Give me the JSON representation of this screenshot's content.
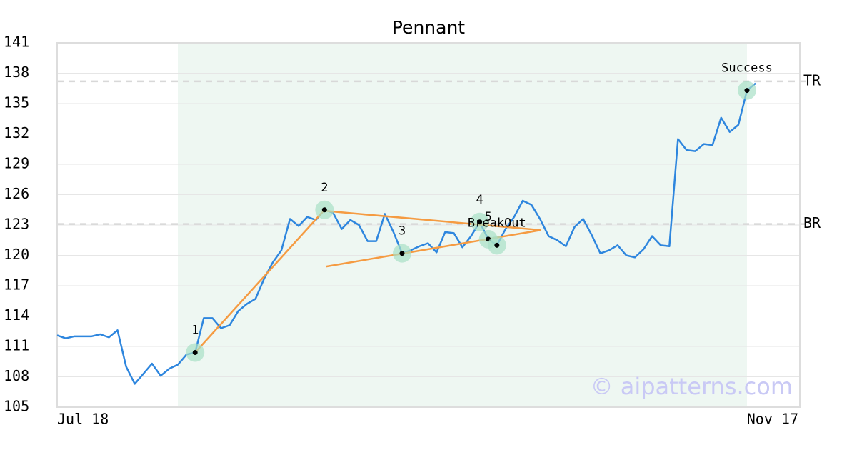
{
  "chart_data": {
    "type": "line",
    "title": "Pennant",
    "categories": [
      "Jul 18",
      null,
      null,
      null,
      null,
      null,
      null,
      null,
      null,
      null,
      null,
      null,
      null,
      null,
      null,
      null,
      null,
      null,
      null,
      null,
      null,
      null,
      null,
      null,
      null,
      null,
      null,
      null,
      null,
      null,
      null,
      null,
      null,
      null,
      null,
      null,
      null,
      null,
      null,
      null,
      null,
      null,
      null,
      null,
      null,
      null,
      null,
      null,
      null,
      null,
      null,
      null,
      null,
      null,
      null,
      null,
      null,
      null,
      null,
      null,
      null,
      null,
      null,
      null,
      null,
      null,
      null,
      null,
      null,
      null,
      null,
      null,
      null,
      null,
      null,
      null,
      null,
      null,
      null,
      null,
      null,
      "Nov 17"
    ],
    "series": [
      {
        "color": "#2e86de",
        "values": [
          112.1,
          111.8,
          112.0,
          112.0,
          112.0,
          112.2,
          111.9,
          112.6,
          109.0,
          107.3,
          108.3,
          109.3,
          108.1,
          108.8,
          109.2,
          110.2,
          110.4,
          113.8,
          113.8,
          112.8,
          113.1,
          114.5,
          115.2,
          115.7,
          117.7,
          119.3,
          120.5,
          123.6,
          122.9,
          123.8,
          123.5,
          124.5,
          124.2,
          122.6,
          123.5,
          123.0,
          121.4,
          121.4,
          124.1,
          122.3,
          120.2,
          120.5,
          120.9,
          121.2,
          120.3,
          122.3,
          122.2,
          120.8,
          121.9,
          123.3,
          121.6,
          121.0,
          122.6,
          123.8,
          125.4,
          125.0,
          123.6,
          121.9,
          121.5,
          120.9,
          122.8,
          123.6,
          122.0,
          120.2,
          120.5,
          121.0,
          120.0,
          119.8,
          120.6,
          121.9,
          121.0,
          120.9,
          131.5,
          130.4,
          130.3,
          131.0,
          130.9,
          133.6,
          132.2,
          132.9,
          136.3,
          137.0
        ]
      }
    ],
    "ylim": [
      105,
      141
    ],
    "yticks": [
      105,
      108,
      111,
      114,
      117,
      120,
      123,
      126,
      129,
      132,
      135,
      138,
      141
    ],
    "grid": true,
    "highlight": {
      "from": 14,
      "to": 80,
      "color": "#eef7f2"
    },
    "levels": [
      {
        "label": "TR",
        "value": 137.2
      },
      {
        "label": "BR",
        "value": 123.1
      }
    ],
    "trend_lines": [
      {
        "color": "#f59b42",
        "points": [
          [
            16,
            110.4
          ],
          [
            31,
            124.5
          ]
        ]
      },
      {
        "color": "#f59b42",
        "points": [
          [
            31,
            124.4
          ],
          [
            56.1,
            122.5
          ]
        ]
      },
      {
        "color": "#f59b42",
        "points": [
          [
            31.2,
            118.9
          ],
          [
            56.1,
            122.5
          ]
        ]
      }
    ],
    "annotations": [
      {
        "label": "1",
        "index": 16,
        "value": 110.4
      },
      {
        "label": "2",
        "index": 31,
        "value": 124.5
      },
      {
        "label": "3",
        "index": 40,
        "value": 120.2
      },
      {
        "label": "4",
        "index": 49,
        "value": 123.3
      },
      {
        "label": "5",
        "index": 50,
        "value": 121.6
      },
      {
        "label": "BreakOut",
        "index": 51,
        "value": 121.0
      },
      {
        "label": "Success",
        "index": 80,
        "value": 136.3
      }
    ],
    "watermark": "© aipatterns.com"
  }
}
